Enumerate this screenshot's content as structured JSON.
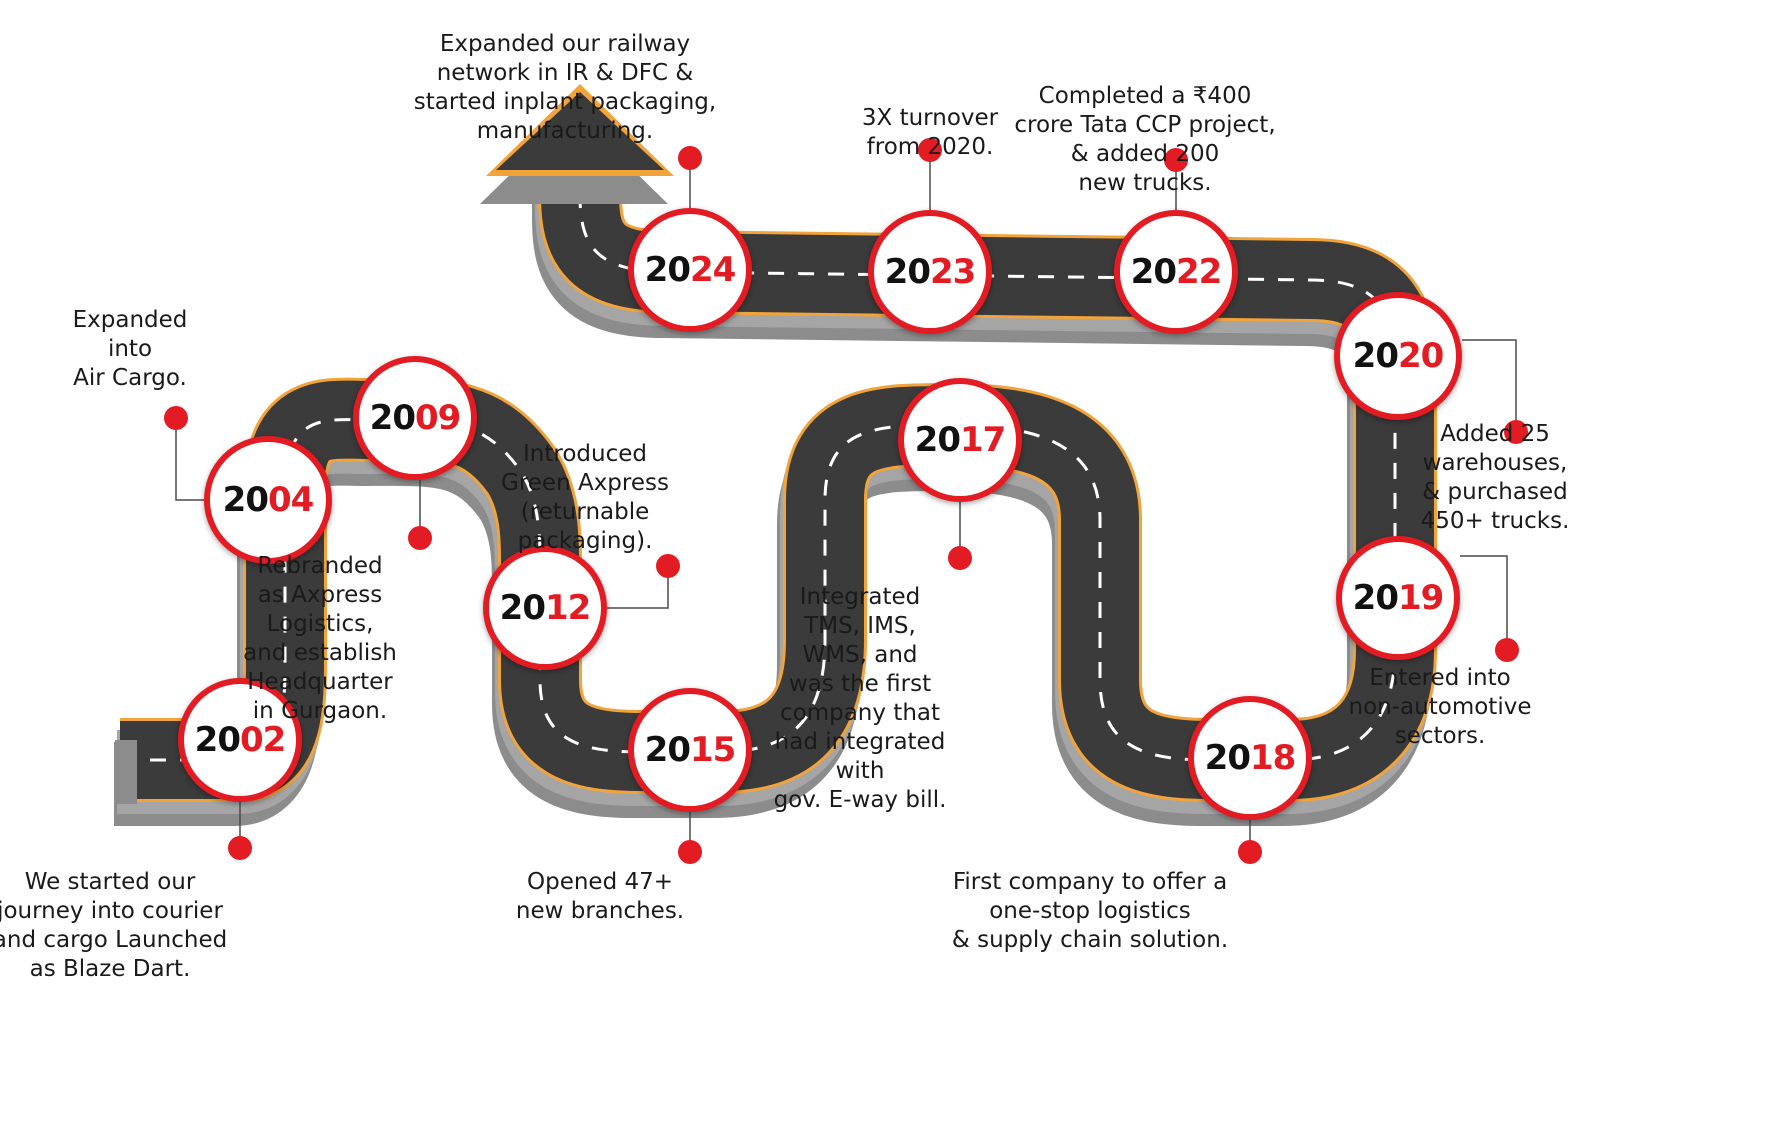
{
  "colors": {
    "asphalt": "#3b3b3b",
    "edge_orange": "#f2a33a",
    "shadow": "#8c8c8c",
    "dash": "#ffffff",
    "accent_red": "#e31b23",
    "year_dark": "#111111",
    "leader_line": "#4a4a4a"
  },
  "diagram_type": "road-shaped timeline with arrow pointing up at the end",
  "milestones": [
    {
      "id": "2002",
      "year_a": "20",
      "year_b": "02",
      "caption": [
        "We started our",
        "journey into courier",
        "and cargo Launched",
        "as Blaze Dart."
      ]
    },
    {
      "id": "2004",
      "year_a": "20",
      "year_b": "04",
      "caption": [
        "Expanded",
        "into",
        "Air Cargo."
      ]
    },
    {
      "id": "2009",
      "year_a": "20",
      "year_b": "09",
      "caption": [
        "Rebranded",
        "as Axpress",
        "Logistics,",
        "and establish",
        "Headquarter",
        "in Gurgaon."
      ]
    },
    {
      "id": "2012",
      "year_a": "20",
      "year_b": "12",
      "caption": [
        "Introduced",
        "Green Axpress",
        "(returnable",
        "packaging)."
      ]
    },
    {
      "id": "2015",
      "year_a": "20",
      "year_b": "15",
      "caption": [
        "Opened 47+",
        "new branches."
      ]
    },
    {
      "id": "2017",
      "year_a": "20",
      "year_b": "17",
      "caption": [
        "Integrated",
        "TMS, IMS,",
        "WMS, and",
        "was the first",
        "company that",
        "had integrated",
        "with",
        "gov. E-way bill."
      ]
    },
    {
      "id": "2018",
      "year_a": "20",
      "year_b": "18",
      "caption": [
        "First company to offer a",
        "one-stop logistics",
        "& supply chain solution."
      ]
    },
    {
      "id": "2019",
      "year_a": "20",
      "year_b": "19",
      "caption": [
        "Entered into",
        "non-automotive",
        "sectors."
      ]
    },
    {
      "id": "2020",
      "year_a": "20",
      "year_b": "20",
      "caption": [
        "Added 25",
        "warehouses,",
        "& purchased",
        "450+ trucks."
      ]
    },
    {
      "id": "2022",
      "year_a": "20",
      "year_b": "22",
      "caption": [
        "Completed a ₹400",
        "crore Tata CCP project,",
        "& added 200",
        "new trucks."
      ]
    },
    {
      "id": "2023",
      "year_a": "20",
      "year_b": "23",
      "caption": [
        "3X turnover",
        "from 2020."
      ]
    },
    {
      "id": "2024",
      "year_a": "20",
      "year_b": "24",
      "caption": [
        "Expanded our  railway",
        "network in IR & DFC &",
        "started inplant packaging,",
        "manufacturing."
      ]
    }
  ]
}
